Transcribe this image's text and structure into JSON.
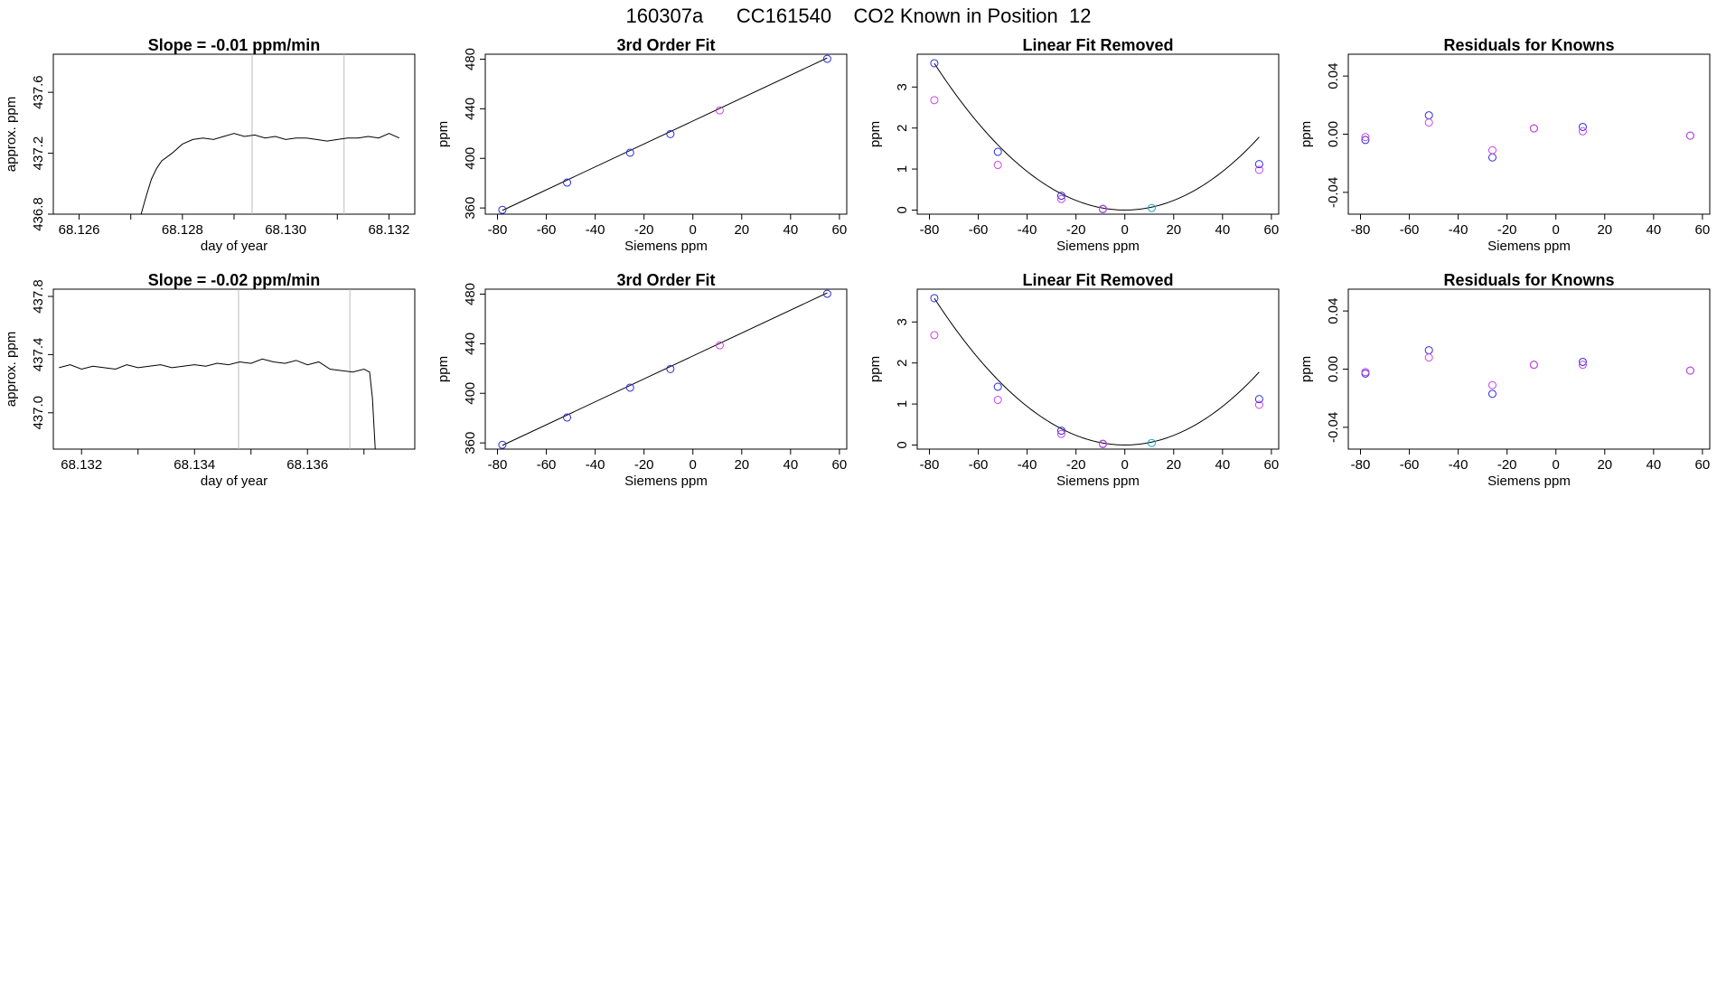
{
  "suptitle": "160307a      CC161540    CO2 Known in Position  12",
  "colors": {
    "blue": "#2b2be0",
    "magenta": "#cc44e6",
    "cyan": "#1aa7c4",
    "red": "#e06060",
    "line": "#000000",
    "vline": "#bbbbbb"
  },
  "chart_data": [
    {
      "id": "r1c1",
      "type": "line",
      "title": "Slope =  -0.01  ppm/min",
      "xlabel": "day of year",
      "ylabel": "approx. ppm",
      "xlim": [
        68.1255,
        68.1325
      ],
      "ylim": [
        436.8,
        437.85
      ],
      "xticks": [
        "68.126",
        "68.127",
        "68.128",
        "68.129",
        "68.130",
        "68.131",
        "68.132"
      ],
      "xtick_labels": [
        "68.126",
        "",
        "68.128",
        "",
        "68.130",
        "",
        "68.132"
      ],
      "yticks": [
        "436.8",
        "437.2",
        "437.6"
      ],
      "vlines": [
        68.12935,
        68.13113
      ],
      "x": [
        68.1272,
        68.1273,
        68.1274,
        68.1275,
        68.1276,
        68.1278,
        68.128,
        68.1282,
        68.1284,
        68.1286,
        68.1288,
        68.129,
        68.1292,
        68.1294,
        68.1296,
        68.1298,
        68.13,
        68.1302,
        68.1304,
        68.1306,
        68.1308,
        68.131,
        68.1312,
        68.1314,
        68.1316,
        68.1318,
        68.132,
        68.1322
      ],
      "y": [
        436.8,
        436.92,
        437.03,
        437.1,
        437.15,
        437.2,
        437.26,
        437.29,
        437.3,
        437.29,
        437.31,
        437.33,
        437.31,
        437.32,
        437.3,
        437.31,
        437.29,
        437.3,
        437.3,
        437.29,
        437.28,
        437.29,
        437.3,
        437.3,
        437.31,
        437.3,
        437.33,
        437.3
      ]
    },
    {
      "id": "r1c2",
      "type": "scatter",
      "title": "3rd Order Fit",
      "xlabel": "Siemens ppm",
      "ylabel": "ppm",
      "xlim": [
        -85,
        63
      ],
      "ylim": [
        355,
        484
      ],
      "xticks": [
        "-80",
        "-60",
        "-40",
        "-20",
        "0",
        "20",
        "40",
        "60"
      ],
      "yticks": [
        "360",
        "400",
        "440",
        "480"
      ],
      "fit": {
        "form": "linear",
        "x": [
          -78,
          55
        ],
        "y": [
          358,
          481
        ]
      },
      "series": [
        {
          "color_key": "blue",
          "x": [
            -78,
            -51.5,
            -25.7,
            -9.2,
            55
          ],
          "y": [
            358.5,
            380.5,
            404.6,
            419.6,
            480.3
          ]
        },
        {
          "color_key": "magenta",
          "x": [
            11
          ],
          "y": [
            438.7
          ]
        }
      ]
    },
    {
      "id": "r1c3",
      "type": "scatter",
      "title": "Linear Fit Removed",
      "xlabel": "Siemens ppm",
      "ylabel": "ppm",
      "xlim": [
        -85,
        63
      ],
      "ylim": [
        -0.1,
        3.8
      ],
      "xticks": [
        "-80",
        "-60",
        "-40",
        "-20",
        "0",
        "20",
        "40",
        "60"
      ],
      "yticks": [
        "0",
        "1",
        "2",
        "3"
      ],
      "fit": {
        "form": "quadratic",
        "a": 0.000588,
        "b": 0,
        "c": 0,
        "range": [
          -78,
          55
        ]
      },
      "series": [
        {
          "color_key": "blue",
          "x": [
            -78,
            -52,
            -26,
            -9,
            55
          ],
          "y": [
            3.58,
            1.42,
            0.35,
            0.03,
            1.12
          ]
        },
        {
          "color_key": "magenta",
          "x": [
            -78,
            -52,
            -26,
            -9,
            55
          ],
          "y": [
            2.68,
            1.1,
            0.27,
            0.02,
            0.98
          ]
        },
        {
          "color_key": "cyan",
          "x": [
            11
          ],
          "y": [
            0.05
          ]
        }
      ]
    },
    {
      "id": "r1c4",
      "type": "scatter",
      "title": "Residuals for Knowns",
      "xlabel": "Siemens ppm",
      "ylabel": "ppm",
      "xlim": [
        -85,
        63
      ],
      "ylim": [
        -0.055,
        0.055
      ],
      "xticks": [
        "-80",
        "-60",
        "-40",
        "-20",
        "0",
        "20",
        "40",
        "60"
      ],
      "yticks": [
        "-0.04",
        "0.00",
        "0.04"
      ],
      "series": [
        {
          "color_key": "blue",
          "x": [
            -78,
            -52,
            -26,
            -9,
            11,
            55
          ],
          "y": [
            -0.004,
            0.013,
            -0.016,
            0.004,
            0.005,
            -0.001
          ]
        },
        {
          "color_key": "magenta",
          "x": [
            -78,
            -52,
            -26,
            -9,
            11,
            55
          ],
          "y": [
            -0.002,
            0.008,
            -0.011,
            0.004,
            0.002,
            -0.001
          ]
        }
      ]
    },
    {
      "id": "r2c1",
      "type": "line",
      "title": "Slope =  -0.02  ppm/min",
      "xlabel": "day of year",
      "ylabel": "approx. ppm",
      "xlim": [
        68.1315,
        68.1379
      ],
      "ylim": [
        436.75,
        437.85
      ],
      "xticks": [
        "68.132",
        "68.133",
        "68.134",
        "68.135",
        "68.136",
        "68.137"
      ],
      "xtick_labels": [
        "68.132",
        "",
        "68.134",
        "",
        "68.136",
        ""
      ],
      "yticks": [
        "437.0",
        "437.4",
        "437.8"
      ],
      "vlines": [
        68.13478,
        68.13675
      ],
      "x": [
        68.1316,
        68.1318,
        68.132,
        68.1322,
        68.1324,
        68.1326,
        68.1328,
        68.133,
        68.1332,
        68.1334,
        68.1336,
        68.1338,
        68.134,
        68.1342,
        68.1344,
        68.1346,
        68.1348,
        68.135,
        68.1352,
        68.1354,
        68.1356,
        68.1358,
        68.136,
        68.1362,
        68.1364,
        68.1366,
        68.1368,
        68.137,
        68.1371,
        68.13715,
        68.1372
      ],
      "y": [
        437.31,
        437.33,
        437.3,
        437.32,
        437.31,
        437.3,
        437.33,
        437.31,
        437.32,
        437.33,
        437.31,
        437.32,
        437.33,
        437.32,
        437.34,
        437.33,
        437.35,
        437.34,
        437.37,
        437.35,
        437.34,
        437.36,
        437.33,
        437.35,
        437.3,
        437.29,
        437.28,
        437.3,
        437.28,
        437.1,
        436.75
      ]
    },
    {
      "id": "r2c2",
      "type": "scatter",
      "title": "3rd Order Fit",
      "xlabel": "Siemens ppm",
      "ylabel": "ppm",
      "xlim": [
        -85,
        63
      ],
      "ylim": [
        355,
        484
      ],
      "xticks": [
        "-80",
        "-60",
        "-40",
        "-20",
        "0",
        "20",
        "40",
        "60"
      ],
      "yticks": [
        "360",
        "400",
        "440",
        "480"
      ],
      "fit": {
        "form": "linear",
        "x": [
          -78,
          55
        ],
        "y": [
          358,
          481
        ]
      },
      "series": [
        {
          "color_key": "blue",
          "x": [
            -78,
            -51.5,
            -25.7,
            -9.2,
            55
          ],
          "y": [
            358.5,
            380.5,
            404.6,
            419.6,
            480.3
          ]
        },
        {
          "color_key": "magenta",
          "x": [
            11
          ],
          "y": [
            438.7
          ]
        }
      ]
    },
    {
      "id": "r2c3",
      "type": "scatter",
      "title": "Linear Fit Removed",
      "xlabel": "Siemens ppm",
      "ylabel": "ppm",
      "xlim": [
        -85,
        63
      ],
      "ylim": [
        -0.1,
        3.8
      ],
      "xticks": [
        "-80",
        "-60",
        "-40",
        "-20",
        "0",
        "20",
        "40",
        "60"
      ],
      "yticks": [
        "0",
        "1",
        "2",
        "3"
      ],
      "fit": {
        "form": "quadratic",
        "a": 0.000588,
        "b": 0,
        "c": 0,
        "range": [
          -78,
          55
        ]
      },
      "series": [
        {
          "color_key": "blue",
          "x": [
            -78,
            -52,
            -26,
            -9,
            55
          ],
          "y": [
            3.58,
            1.42,
            0.35,
            0.03,
            1.12
          ]
        },
        {
          "color_key": "magenta",
          "x": [
            -78,
            -52,
            -26,
            -9,
            55
          ],
          "y": [
            2.68,
            1.1,
            0.27,
            0.02,
            0.98
          ]
        },
        {
          "color_key": "cyan",
          "x": [
            11
          ],
          "y": [
            0.05
          ]
        }
      ]
    },
    {
      "id": "r2c4",
      "type": "scatter",
      "title": "Residuals for Knowns",
      "xlabel": "Siemens ppm",
      "ylabel": "ppm",
      "xlim": [
        -85,
        63
      ],
      "ylim": [
        -0.055,
        0.055
      ],
      "xticks": [
        "-80",
        "-60",
        "-40",
        "-20",
        "0",
        "20",
        "40",
        "60"
      ],
      "yticks": [
        "-0.04",
        "0.00",
        "0.04"
      ],
      "series": [
        {
          "color_key": "blue",
          "x": [
            -78,
            -52,
            -26,
            -9,
            11,
            55
          ],
          "y": [
            -0.003,
            0.013,
            -0.017,
            0.003,
            0.005,
            -0.001
          ]
        },
        {
          "color_key": "magenta",
          "x": [
            -78,
            -52,
            -26,
            -9,
            11,
            55
          ],
          "y": [
            -0.002,
            0.008,
            -0.011,
            0.003,
            0.003,
            -0.001
          ]
        }
      ]
    }
  ]
}
